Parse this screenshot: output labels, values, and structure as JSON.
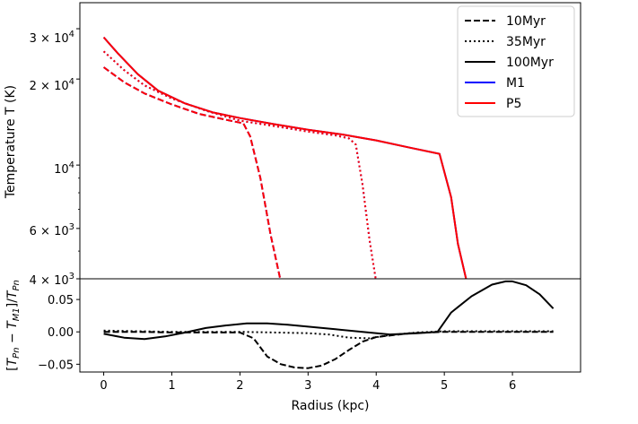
{
  "chart_data": [
    {
      "type": "line",
      "panel": "temperature",
      "title": "",
      "xlabel": "",
      "ylabel": "Temperature T (K)",
      "yscale": "log",
      "xlim": [
        -0.35,
        7.0
      ],
      "ylim": [
        4000,
        37000
      ],
      "ytick_labels": [
        {
          "value": 30000,
          "label": "3 × 10^4"
        },
        {
          "value": 20000,
          "label": "2 × 10^4"
        },
        {
          "value": 10000,
          "label": "10^4"
        },
        {
          "value": 6000,
          "label": "6 × 10^3"
        },
        {
          "value": 4000,
          "label": "4 × 10^3"
        }
      ],
      "legend": {
        "location": "top-right",
        "entries": [
          {
            "label": "10Myr",
            "style": "dashed",
            "color": "#000000"
          },
          {
            "label": "35Myr",
            "style": "dotted",
            "color": "#000000"
          },
          {
            "label": "100Myr",
            "style": "solid",
            "color": "#000000"
          },
          {
            "label": "M1",
            "style": "solid",
            "color": "#0000ff"
          },
          {
            "label": "P5",
            "style": "solid",
            "color": "#ff0000"
          }
        ]
      },
      "series": [
        {
          "name": "M1 10Myr",
          "color": "#0000ff",
          "style": "dashed",
          "x": [
            0,
            0.3,
            0.6,
            1.0,
            1.4,
            1.8,
            2.05,
            2.15,
            2.3,
            2.45,
            2.6
          ],
          "y": [
            22000,
            19500,
            17800,
            16300,
            15100,
            14400,
            14000,
            12600,
            9000,
            5700,
            3900
          ]
        },
        {
          "name": "P5 10Myr",
          "color": "#ff0000",
          "style": "dashed",
          "x": [
            0,
            0.3,
            0.6,
            1.0,
            1.4,
            1.8,
            2.05,
            2.15,
            2.3,
            2.45,
            2.6
          ],
          "y": [
            22000,
            19500,
            17800,
            16300,
            15100,
            14400,
            14000,
            12600,
            9000,
            5700,
            3900
          ]
        },
        {
          "name": "M1 35Myr",
          "color": "#0000ff",
          "style": "dotted",
          "x": [
            0,
            0.3,
            0.6,
            1.0,
            1.5,
            2.0,
            2.5,
            3.0,
            3.4,
            3.6,
            3.7,
            3.8,
            3.9,
            4.0
          ],
          "y": [
            25000,
            21500,
            19000,
            17100,
            15500,
            14300,
            13700,
            13100,
            12700,
            12400,
            11800,
            8500,
            5500,
            3900
          ]
        },
        {
          "name": "P5 35Myr",
          "color": "#ff0000",
          "style": "dotted",
          "x": [
            0,
            0.3,
            0.6,
            1.0,
            1.5,
            2.0,
            2.5,
            3.0,
            3.4,
            3.6,
            3.7,
            3.8,
            3.9,
            4.0
          ],
          "y": [
            25000,
            21500,
            19000,
            17100,
            15500,
            14300,
            13700,
            13100,
            12700,
            12400,
            11800,
            8500,
            5500,
            3900
          ]
        },
        {
          "name": "M1 100Myr",
          "color": "#0000ff",
          "style": "solid",
          "x": [
            0,
            0.2,
            0.5,
            0.8,
            1.2,
            1.6,
            2.0,
            2.5,
            3.0,
            3.5,
            4.0,
            4.5,
            4.93,
            5.1,
            5.2,
            5.33
          ],
          "y": [
            28000,
            24700,
            20800,
            18200,
            16400,
            15300,
            14600,
            13900,
            13300,
            12800,
            12200,
            11500,
            10950,
            7700,
            5300,
            3900
          ]
        },
        {
          "name": "P5 100Myr",
          "color": "#ff0000",
          "style": "solid",
          "x": [
            0,
            0.2,
            0.5,
            0.8,
            1.2,
            1.6,
            2.0,
            2.5,
            3.0,
            3.5,
            4.0,
            4.5,
            4.93,
            5.1,
            5.2,
            5.33
          ],
          "y": [
            28000,
            24700,
            20800,
            18200,
            16400,
            15300,
            14600,
            13900,
            13300,
            12800,
            12200,
            11500,
            10950,
            7700,
            5300,
            3900
          ]
        }
      ]
    },
    {
      "type": "line",
      "panel": "relative-difference",
      "title": "",
      "xlabel": "Radius (kpc)",
      "ylabel": "[T_Pn − T_M1]/T_Pn",
      "xlim": [
        -0.35,
        7.0
      ],
      "ylim": [
        -0.062,
        0.082
      ],
      "xticks": [
        0,
        1,
        2,
        3,
        4,
        5,
        6
      ],
      "xtick_labels": [
        "0",
        "1",
        "2",
        "3",
        "4",
        "5",
        "6"
      ],
      "yticks": [
        0.05,
        0.0,
        -0.05
      ],
      "ytick_labels": [
        "0.05",
        "0.00",
        "−0.05"
      ],
      "series": [
        {
          "name": "10Myr",
          "color": "#000000",
          "style": "dashed",
          "x": [
            0,
            0.5,
            1.0,
            1.5,
            2.0,
            2.2,
            2.4,
            2.6,
            2.8,
            3.0,
            3.2,
            3.4,
            3.6,
            3.8,
            4.0,
            4.5,
            5.0,
            5.5,
            6.0,
            6.6
          ],
          "y": [
            0,
            0,
            -0.001,
            -0.001,
            -0.001,
            -0.01,
            -0.038,
            -0.05,
            -0.055,
            -0.056,
            -0.052,
            -0.042,
            -0.028,
            -0.015,
            -0.008,
            -0.002,
            0,
            0,
            0,
            0
          ]
        },
        {
          "name": "35Myr",
          "color": "#000000",
          "style": "dotted",
          "x": [
            0,
            0.5,
            1.0,
            1.5,
            2.0,
            2.5,
            3.0,
            3.3,
            3.6,
            3.9,
            4.2,
            4.6,
            5.0,
            6.0,
            6.6
          ],
          "y": [
            0.002,
            0.001,
            0.0,
            0.0,
            0.0,
            -0.001,
            -0.002,
            -0.004,
            -0.009,
            -0.01,
            -0.005,
            -0.001,
            0.001,
            0.001,
            0.001
          ]
        },
        {
          "name": "100Myr",
          "color": "#000000",
          "style": "solid",
          "x": [
            0,
            0.3,
            0.6,
            0.9,
            1.2,
            1.5,
            1.8,
            2.1,
            2.4,
            2.7,
            3.0,
            3.4,
            3.8,
            4.2,
            4.6,
            4.9,
            5.1,
            5.4,
            5.7,
            5.9,
            6.0,
            6.2,
            6.4,
            6.6
          ],
          "y": [
            -0.003,
            -0.009,
            -0.011,
            -0.007,
            -0.001,
            0.006,
            0.01,
            0.013,
            0.013,
            0.011,
            0.008,
            0.004,
            0.0,
            -0.004,
            -0.002,
            0.0,
            0.03,
            0.055,
            0.073,
            0.078,
            0.078,
            0.072,
            0.058,
            0.036
          ]
        }
      ]
    }
  ]
}
